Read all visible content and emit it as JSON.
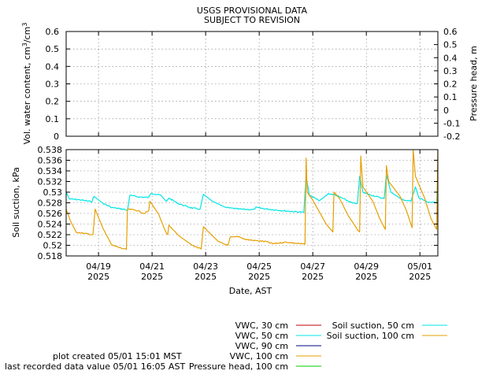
{
  "header": {
    "title_line1": "USGS PROVISIONAL DATA",
    "title_line2": "SUBJECT TO REVISION"
  },
  "footer": {
    "created": "plot created 05/01 15:01 MST",
    "last_value": "last recorded data value 05/01 16:05 AST"
  },
  "chart_data": [
    {
      "type": "line",
      "ylabel": "Vol. water content, cm³/cm³",
      "ylabel_main": "Vol. water content, cm",
      "ylabel_sup1": "3",
      "ylabel_mid": "/cm",
      "ylabel_sup2": "3",
      "y2label": "Pressure head, m",
      "ylim": [
        0,
        0.6
      ],
      "y2lim": [
        -0.2,
        0.6
      ],
      "yticks": [
        "0",
        "0.1",
        "0.2",
        "0.3",
        "0.4",
        "0.5",
        "0.6"
      ],
      "y2ticks": [
        "-0.2",
        "-0.1",
        "0",
        "0.1",
        "0.2",
        "0.3",
        "0.4",
        "0.5",
        "0.6"
      ],
      "grid": true,
      "series": []
    },
    {
      "type": "line",
      "ylabel": "Soil suction, kPa",
      "xlabel": "Date, AST",
      "ylim": [
        0.518,
        0.538
      ],
      "yticks": [
        "0.518",
        "0.52",
        "0.522",
        "0.524",
        "0.526",
        "0.528",
        "0.53",
        "0.532",
        "0.534",
        "0.536",
        "0.538"
      ],
      "xlim_days": [
        17.8,
        1.7
      ],
      "x_range": [
        "04/17 19:00",
        "05/01 16:05"
      ],
      "xticks": [
        {
          "date": "04/19",
          "year": "2025"
        },
        {
          "date": "04/21",
          "year": "2025"
        },
        {
          "date": "04/23",
          "year": "2025"
        },
        {
          "date": "04/25",
          "year": "2025"
        },
        {
          "date": "04/27",
          "year": "2025"
        },
        {
          "date": "04/29",
          "year": "2025"
        },
        {
          "date": "05/01",
          "year": "2025"
        }
      ],
      "grid": true,
      "series": [
        {
          "name": "Soil suction, 50 cm",
          "color": "#00e5e5",
          "points": [
            [
              "04/17 19:00",
              0.53
            ],
            [
              "04/17 22:00",
              0.5287
            ],
            [
              "04/18 06:00",
              0.5286
            ],
            [
              "04/18 12:00",
              0.5284
            ],
            [
              "04/18 18:00",
              0.5282
            ],
            [
              "04/18 20:00",
              0.5292
            ],
            [
              "04/19 04:00",
              0.5279
            ],
            [
              "04/19 12:00",
              0.5271
            ],
            [
              "04/19 22:00",
              0.5268
            ],
            [
              "04/20 02:00",
              0.5266
            ],
            [
              "04/20 04:00",
              0.5294
            ],
            [
              "04/20 12:00",
              0.5291
            ],
            [
              "04/20 21:00",
              0.529
            ],
            [
              "04/20 23:00",
              0.5298
            ],
            [
              "04/21 08:00",
              0.5294
            ],
            [
              "04/21 13:00",
              0.5282
            ],
            [
              "04/21 15:00",
              0.5289
            ],
            [
              "04/22 00:00",
              0.5278
            ],
            [
              "04/22 12:00",
              0.527
            ],
            [
              "04/22 19:00",
              0.5268
            ],
            [
              "04/22 22:00",
              0.5296
            ],
            [
              "04/23 06:00",
              0.5283
            ],
            [
              "04/23 18:00",
              0.5271
            ],
            [
              "04/24 06:00",
              0.5268
            ],
            [
              "04/24 19:00",
              0.5267
            ],
            [
              "04/24 21:00",
              0.5271
            ],
            [
              "04/25 08:00",
              0.5268
            ],
            [
              "04/25 22:00",
              0.5265
            ],
            [
              "04/26 10:00",
              0.5263
            ],
            [
              "04/26 16:00",
              0.5262
            ],
            [
              "04/26 18:00",
              0.533
            ],
            [
              "04/26 21:00",
              0.5294
            ],
            [
              "04/27 06:00",
              0.5284
            ],
            [
              "04/27 14:00",
              0.5297
            ],
            [
              "04/27 20:00",
              0.5295
            ],
            [
              "04/28 06:00",
              0.5285
            ],
            [
              "04/28 12:00",
              0.5279
            ],
            [
              "04/28 16:00",
              0.5279
            ],
            [
              "04/28 18:00",
              0.533
            ],
            [
              "04/28 21:00",
              0.5299
            ],
            [
              "04/29 12:00",
              0.529
            ],
            [
              "04/29 16:00",
              0.5288
            ],
            [
              "04/29 18:00",
              0.5333
            ],
            [
              "04/29 22:00",
              0.53
            ],
            [
              "04/30 08:00",
              0.5286
            ],
            [
              "04/30 16:00",
              0.5283
            ],
            [
              "04/30 20:00",
              0.531
            ],
            [
              "04/30 23:00",
              0.529
            ],
            [
              "05/01 06:00",
              0.5282
            ],
            [
              "05/01 14:00",
              0.528
            ],
            [
              "05/01 15:00",
              0.5281
            ],
            [
              "05/01 16:05",
              0.534
            ]
          ]
        },
        {
          "name": "Soil suction, 100 cm",
          "color": "#e69f00",
          "points": [
            [
              "04/17 19:00",
              0.5268
            ],
            [
              "04/17 23:00",
              0.5245
            ],
            [
              "04/18 04:00",
              0.5225
            ],
            [
              "04/18 12:00",
              0.5222
            ],
            [
              "04/18 19:00",
              0.522
            ],
            [
              "04/18 21:00",
              0.5268
            ],
            [
              "04/19 04:00",
              0.5232
            ],
            [
              "04/19 12:00",
              0.52
            ],
            [
              "04/19 23:00",
              0.5193
            ],
            [
              "04/20 01:00",
              0.5192
            ],
            [
              "04/20 02:00",
              0.5268
            ],
            [
              "04/20 10:00",
              0.5266
            ],
            [
              "04/20 17:00",
              0.526
            ],
            [
              "04/20 21:00",
              0.5265
            ],
            [
              "04/20 22:00",
              0.5283
            ],
            [
              "04/21 06:00",
              0.5258
            ],
            [
              "04/21 12:00",
              0.5226
            ],
            [
              "04/21 14:00",
              0.522
            ],
            [
              "04/21 15:00",
              0.5238
            ],
            [
              "04/22 00:00",
              0.5218
            ],
            [
              "04/22 12:00",
              0.52
            ],
            [
              "04/22 20:00",
              0.5193
            ],
            [
              "04/22 22:00",
              0.5235
            ],
            [
              "04/23 06:00",
              0.5218
            ],
            [
              "04/23 12:00",
              0.5206
            ],
            [
              "04/23 20:00",
              0.52
            ],
            [
              "04/23 22:00",
              0.5215
            ],
            [
              "04/24 06:00",
              0.5216
            ],
            [
              "04/24 12:00",
              0.5211
            ],
            [
              "04/24 20:00",
              0.5209
            ],
            [
              "04/25 06:00",
              0.5207
            ],
            [
              "04/25 12:00",
              0.5203
            ],
            [
              "04/26 00:00",
              0.5206
            ],
            [
              "04/26 12:00",
              0.5203
            ],
            [
              "04/26 17:00",
              0.5202
            ],
            [
              "04/26 18:00",
              0.5364
            ],
            [
              "04/26 19:00",
              0.53
            ],
            [
              "04/27 00:00",
              0.5285
            ],
            [
              "04/27 12:00",
              0.524
            ],
            [
              "04/27 18:00",
              0.5225
            ],
            [
              "04/27 19:00",
              0.53
            ],
            [
              "04/28 00:00",
              0.5288
            ],
            [
              "04/28 08:00",
              0.5255
            ],
            [
              "04/28 16:00",
              0.523
            ],
            [
              "04/28 18:00",
              0.5225
            ],
            [
              "04/28 19:00",
              0.5368
            ],
            [
              "04/28 21:00",
              0.531
            ],
            [
              "04/29 06:00",
              0.5282
            ],
            [
              "04/29 12:00",
              0.525
            ],
            [
              "04/29 17:00",
              0.523
            ],
            [
              "04/29 18:00",
              0.535
            ],
            [
              "04/29 20:00",
              0.532
            ],
            [
              "04/30 06:00",
              0.5293
            ],
            [
              "04/30 12:00",
              0.5265
            ],
            [
              "04/30 17:00",
              0.5233
            ],
            [
              "04/30 18:00",
              0.538
            ],
            [
              "04/30 20:00",
              0.533
            ],
            [
              "05/01 04:00",
              0.529
            ],
            [
              "05/01 10:00",
              0.525
            ],
            [
              "05/01 15:00",
              0.523
            ],
            [
              "05/01 16:05",
              0.538
            ]
          ]
        }
      ]
    }
  ],
  "legend": {
    "placement": "bottom",
    "left": [
      {
        "label": "VWC, 30 cm",
        "color": "#c00000"
      },
      {
        "label": "VWC, 50 cm",
        "color": "#00e5e5"
      },
      {
        "label": "VWC, 90 cm",
        "color": "#000080"
      },
      {
        "label": "VWC, 100 cm",
        "color": "#e69f00"
      },
      {
        "label": "Pressure head, 100 cm",
        "color": "#00cc00"
      }
    ],
    "right": [
      {
        "label": "Soil suction, 50 cm",
        "color": "#00e5e5"
      },
      {
        "label": "Soil suction, 100 cm",
        "color": "#e69f00"
      }
    ]
  }
}
